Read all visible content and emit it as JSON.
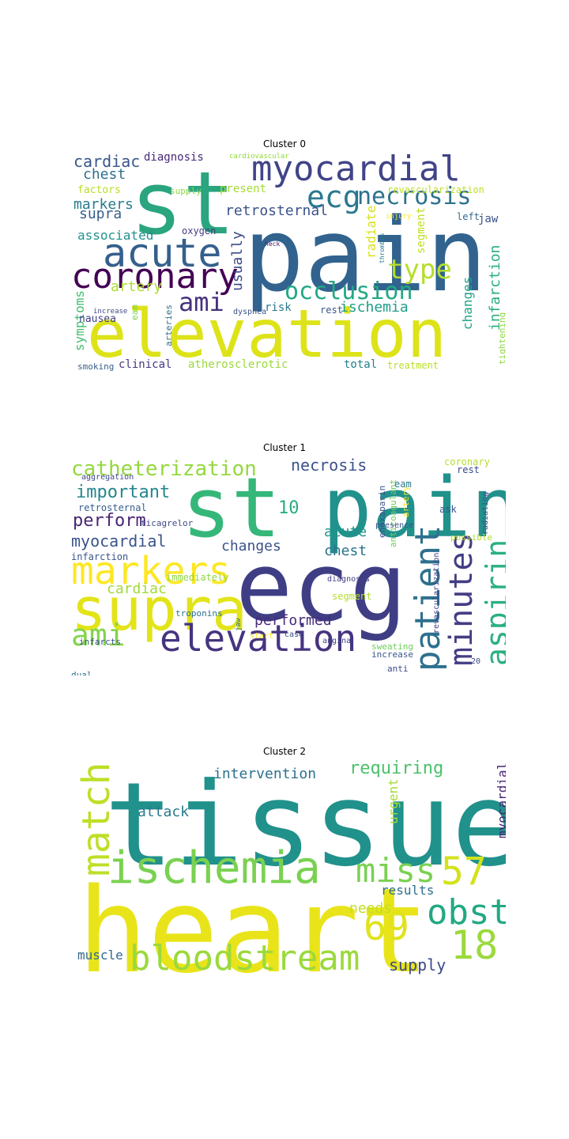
{
  "chart_data": [
    {
      "type": "wordcloud",
      "title": "Cluster 0",
      "words": [
        {
          "text": "st",
          "weight": 1.0,
          "color": "#2aa57f"
        },
        {
          "text": "pain",
          "weight": 0.95,
          "color": "#31638e"
        },
        {
          "text": "elevation",
          "weight": 0.8,
          "color": "#dde318"
        },
        {
          "text": "myocardial",
          "weight": 0.42,
          "color": "#414487"
        },
        {
          "text": "acute",
          "weight": 0.42,
          "color": "#355f8d"
        },
        {
          "text": "coronary",
          "weight": 0.4,
          "color": "#440154"
        },
        {
          "text": "ecg",
          "weight": 0.33,
          "color": "#2a788e"
        },
        {
          "text": "necrosis",
          "weight": 0.26,
          "color": "#2c728e"
        },
        {
          "text": "type",
          "weight": 0.3,
          "color": "#b5de2b"
        },
        {
          "text": "occlusion",
          "weight": 0.26,
          "color": "#22a884"
        },
        {
          "text": "ami",
          "weight": 0.26,
          "color": "#46327e"
        },
        {
          "text": "cardiac",
          "weight": 0.2,
          "color": "#39568c"
        },
        {
          "text": "chest",
          "weight": 0.18,
          "color": "#2d708e"
        },
        {
          "text": "markers",
          "weight": 0.17,
          "color": "#287c8e"
        },
        {
          "text": "supra",
          "weight": 0.18,
          "color": "#355f8d"
        },
        {
          "text": "retrosternal",
          "weight": 0.17,
          "color": "#3b528b"
        },
        {
          "text": "associated",
          "weight": 0.15,
          "color": "#21908d"
        },
        {
          "text": "artery",
          "weight": 0.15,
          "color": "#addc30"
        },
        {
          "text": "ischemia",
          "weight": 0.16,
          "color": "#1f9e89"
        },
        {
          "text": "infarction",
          "weight": 0.17,
          "color": "#27ad81"
        },
        {
          "text": "usually",
          "weight": 0.15,
          "color": "#3e4989"
        },
        {
          "text": "radiate",
          "weight": 0.14,
          "color": "#d8e219"
        },
        {
          "text": "segment",
          "weight": 0.12,
          "color": "#bddf26"
        },
        {
          "text": "changes",
          "weight": 0.14,
          "color": "#20a386"
        },
        {
          "text": "symptoms",
          "weight": 0.13,
          "color": "#44bf70"
        },
        {
          "text": "diagnosis",
          "weight": 0.11,
          "color": "#482878"
        },
        {
          "text": "factors",
          "weight": 0.11,
          "color": "#b8de29"
        },
        {
          "text": "present",
          "weight": 0.12,
          "color": "#a5db36"
        },
        {
          "text": "jaw",
          "weight": 0.12,
          "color": "#3b528b"
        },
        {
          "text": "nausea",
          "weight": 0.11,
          "color": "#424086"
        },
        {
          "text": "oxygen",
          "weight": 0.1,
          "color": "#443a83"
        },
        {
          "text": "supply",
          "weight": 0.09,
          "color": "#8fd744"
        },
        {
          "text": "risk",
          "weight": 0.11,
          "color": "#2a788e"
        },
        {
          "text": "rest",
          "weight": 0.1,
          "color": "#3a548c"
        },
        {
          "text": "revascularization",
          "weight": 0.09,
          "color": "#bddf26"
        },
        {
          "text": "left",
          "weight": 0.09,
          "color": "#2f6c8e"
        },
        {
          "text": "clinical",
          "weight": 0.12,
          "color": "#453781"
        },
        {
          "text": "atherosclerotic",
          "weight": 0.12,
          "color": "#9bd93c"
        },
        {
          "text": "total",
          "weight": 0.12,
          "color": "#26818e"
        },
        {
          "text": "treatment",
          "weight": 0.1,
          "color": "#b8de29"
        },
        {
          "text": "smoking",
          "weight": 0.09,
          "color": "#355f8d"
        },
        {
          "text": "eam",
          "weight": 0.08,
          "color": "#7ad151"
        },
        {
          "text": "arteries",
          "weight": 0.08,
          "color": "#2c728e"
        },
        {
          "text": "tightening",
          "weight": 0.07,
          "color": "#8fd744"
        },
        {
          "text": "dyspnea",
          "weight": 0.07,
          "color": "#3b528b"
        },
        {
          "text": "increase",
          "weight": 0.06,
          "color": "#3e4989"
        },
        {
          "text": "cardiovascular",
          "weight": 0.06,
          "color": "#95d840"
        },
        {
          "text": "injury",
          "weight": 0.05,
          "color": "#fde725"
        },
        {
          "text": "thrombus",
          "weight": 0.05,
          "color": "#2a788e"
        },
        {
          "text": "neck",
          "weight": 0.05,
          "color": "#481a6c"
        }
      ]
    },
    {
      "type": "wordcloud",
      "title": "Cluster 1",
      "words": [
        {
          "text": "st",
          "weight": 1.0,
          "color": "#35b779"
        },
        {
          "text": "pain",
          "weight": 1.0,
          "color": "#21918c"
        },
        {
          "text": "ecg",
          "weight": 1.0,
          "color": "#3f3e85"
        },
        {
          "text": "supra",
          "weight": 0.62,
          "color": "#e2e418"
        },
        {
          "text": "markers",
          "weight": 0.42,
          "color": "#fde725"
        },
        {
          "text": "elevation",
          "weight": 0.42,
          "color": "#463480"
        },
        {
          "text": "patient",
          "weight": 0.38,
          "color": "#2d708e"
        },
        {
          "text": "minutes",
          "weight": 0.38,
          "color": "#433d84"
        },
        {
          "text": "aspirin",
          "weight": 0.34,
          "color": "#2ab07f"
        },
        {
          "text": "ami",
          "weight": 0.32,
          "color": "#84d44b"
        },
        {
          "text": "catheterization",
          "weight": 0.24,
          "color": "#95d840"
        },
        {
          "text": "important",
          "weight": 0.2,
          "color": "#24868e"
        },
        {
          "text": "perform",
          "weight": 0.2,
          "color": "#482475"
        },
        {
          "text": "myocardial",
          "weight": 0.19,
          "color": "#3a548c"
        },
        {
          "text": "necrosis",
          "weight": 0.18,
          "color": "#3b528b"
        },
        {
          "text": "acute",
          "weight": 0.18,
          "color": "#1f958b"
        },
        {
          "text": "chest",
          "weight": 0.18,
          "color": "#2c728e"
        },
        {
          "text": "changes",
          "weight": 0.16,
          "color": "#3b528b"
        },
        {
          "text": "performed",
          "weight": 0.16,
          "color": "#472c7a"
        },
        {
          "text": "cardiac",
          "weight": 0.15,
          "color": "#a2da37"
        },
        {
          "text": "10",
          "weight": 0.17,
          "color": "#28ae80"
        },
        {
          "text": "retrosternal",
          "weight": 0.1,
          "color": "#355f8d"
        },
        {
          "text": "aggregation",
          "weight": 0.08,
          "color": "#3e4989"
        },
        {
          "text": "ticagrelor",
          "weight": 0.08,
          "color": "#3e4989"
        },
        {
          "text": "infarction",
          "weight": 0.09,
          "color": "#3a548c"
        },
        {
          "text": "immediately",
          "weight": 0.09,
          "color": "#90d743"
        },
        {
          "text": "troponins",
          "weight": 0.08,
          "color": "#2c728e"
        },
        {
          "text": "anticoagulant",
          "weight": 0.07,
          "color": "#6ece58"
        },
        {
          "text": "enoxaparin",
          "weight": 0.07,
          "color": "#3b528b"
        },
        {
          "text": "artery",
          "weight": 0.07,
          "color": "#fde725"
        },
        {
          "text": "eam",
          "weight": 0.08,
          "color": "#287c8e"
        },
        {
          "text": "coronary",
          "weight": 0.09,
          "color": "#b5de2b"
        },
        {
          "text": "rest",
          "weight": 0.08,
          "color": "#3e4989"
        },
        {
          "text": "ask",
          "weight": 0.08,
          "color": "#3b528b"
        },
        {
          "text": "radiating",
          "weight": 0.06,
          "color": "#3a548c"
        },
        {
          "text": "possible",
          "weight": 0.07,
          "color": "#b5de2b"
        },
        {
          "text": "presence",
          "weight": 0.07,
          "color": "#3b528b"
        },
        {
          "text": "revascularization",
          "weight": 0.07,
          "color": "#424086"
        },
        {
          "text": "diagnosis",
          "weight": 0.07,
          "color": "#424086"
        },
        {
          "text": "segment",
          "weight": 0.08,
          "color": "#b5de2b"
        },
        {
          "text": "infarcts",
          "weight": 0.07,
          "color": "#3b528b"
        },
        {
          "text": "jaw",
          "weight": 0.06,
          "color": "#2c728e"
        },
        {
          "text": "start",
          "weight": 0.07,
          "color": "#fde725"
        },
        {
          "text": "case",
          "weight": 0.07,
          "color": "#3e4989"
        },
        {
          "text": "angina",
          "weight": 0.07,
          "color": "#424086"
        },
        {
          "text": "sweating",
          "weight": 0.08,
          "color": "#6ece58"
        },
        {
          "text": "increase",
          "weight": 0.08,
          "color": "#3a548c"
        },
        {
          "text": "anti",
          "weight": 0.08,
          "color": "#3e4989"
        },
        {
          "text": "dual",
          "weight": 0.07,
          "color": "#2c728e"
        },
        {
          "text": "20",
          "weight": 0.06,
          "color": "#3e4989"
        }
      ]
    },
    {
      "type": "wordcloud",
      "title": "Cluster 2",
      "words": [
        {
          "text": "tissue",
          "weight": 1.0,
          "color": "#21918c"
        },
        {
          "text": "heart",
          "weight": 1.0,
          "color": "#e8e419"
        },
        {
          "text": "ischemia",
          "weight": 0.38,
          "color": "#7ad151"
        },
        {
          "text": "match",
          "weight": 0.38,
          "color": "#bddf26"
        },
        {
          "text": "miss",
          "weight": 0.3,
          "color": "#7ad151"
        },
        {
          "text": "57",
          "weight": 0.36,
          "color": "#d2e21b"
        },
        {
          "text": "obst",
          "weight": 0.3,
          "color": "#22a884"
        },
        {
          "text": "69",
          "weight": 0.36,
          "color": "#e0e318"
        },
        {
          "text": "18",
          "weight": 0.36,
          "color": "#9bd93c"
        },
        {
          "text": "bloodstream",
          "weight": 0.3,
          "color": "#9bd93c"
        },
        {
          "text": "intervention",
          "weight": 0.15,
          "color": "#2c728e"
        },
        {
          "text": "requiring",
          "weight": 0.17,
          "color": "#4ac16d"
        },
        {
          "text": "attack",
          "weight": 0.15,
          "color": "#2a788e"
        },
        {
          "text": "urgent",
          "weight": 0.14,
          "color": "#a8db34"
        },
        {
          "text": "myocardial",
          "weight": 0.15,
          "color": "#482475"
        },
        {
          "text": "results",
          "weight": 0.14,
          "color": "#2d708e"
        },
        {
          "text": "needs",
          "weight": 0.15,
          "color": "#c0df25"
        },
        {
          "text": "muscle",
          "weight": 0.13,
          "color": "#31688e"
        },
        {
          "text": "supply",
          "weight": 0.15,
          "color": "#3e4989"
        }
      ]
    }
  ]
}
